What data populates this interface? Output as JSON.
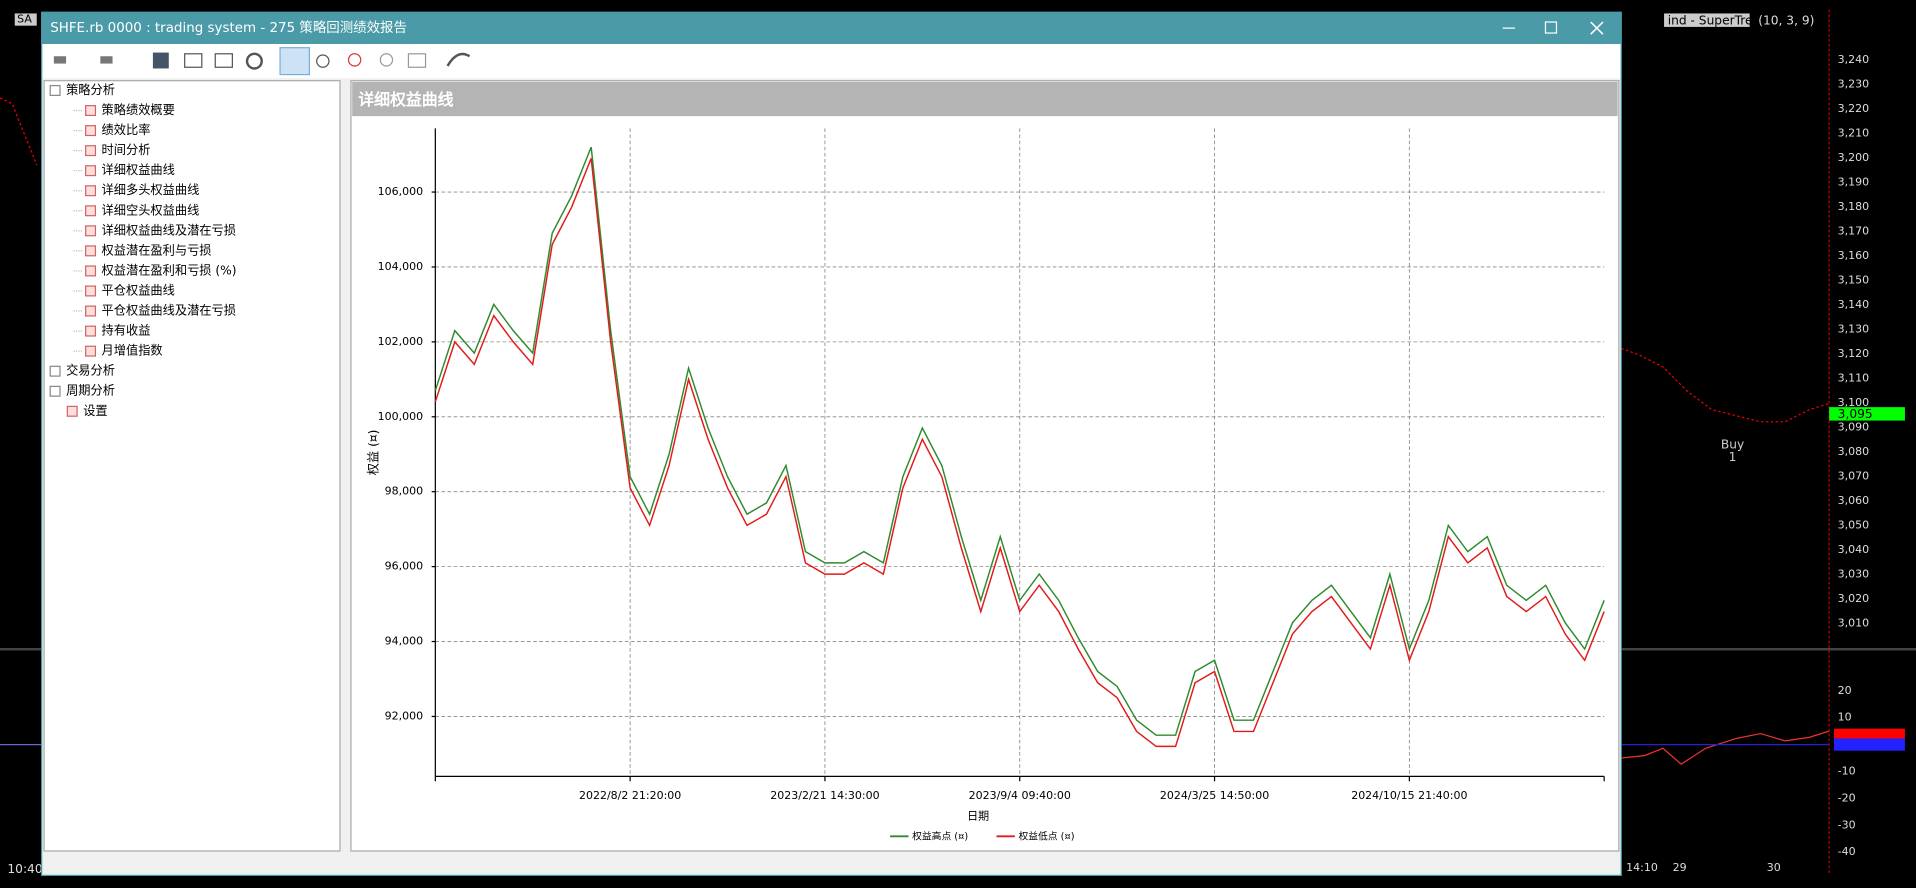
{
  "window": {
    "title": "SHFE.rb 0000 : trading system - 275 策略回测绩效报告"
  },
  "tree": [
    {
      "label": "策略分析",
      "children": [
        "策略绩效概要",
        "绩效比率",
        "时间分析",
        "详细权益曲线",
        "详细多头权益曲线",
        "详细空头权益曲线",
        "详细权益曲线及潜在亏损",
        "权益潜在盈利与亏损",
        "权益潜在盈利和亏损 (%)",
        "平仓权益曲线",
        "平仓权益曲线及潜在亏损",
        "持有收益",
        "月增值指数"
      ]
    },
    {
      "label": "交易分析",
      "children": []
    },
    {
      "label": "周期分析",
      "children": []
    },
    {
      "label": "设置",
      "children": []
    }
  ],
  "panel": {
    "title": "详细权益曲线"
  },
  "chart_data": {
    "type": "line",
    "ylabel": "权益 (¤)",
    "xlabel": "日期",
    "categories": [
      null,
      null,
      null,
      null,
      null,
      null,
      null,
      null,
      null,
      null,
      "2022/8/2 21:20:00",
      null,
      null,
      null,
      null,
      null,
      null,
      null,
      null,
      null,
      "2023/2/21 14:30:00",
      null,
      null,
      null,
      null,
      null,
      null,
      null,
      null,
      null,
      "2023/9/4 09:40:00",
      null,
      null,
      null,
      null,
      null,
      null,
      null,
      null,
      null,
      "2024/3/25 14:50:00",
      null,
      null,
      null,
      null,
      null,
      null,
      null,
      null,
      null,
      "2024/10/15 21:40:00",
      null,
      null,
      null,
      null,
      null,
      null,
      null,
      null,
      null,
      null
    ],
    "series": [
      {
        "name": "权益高点 (¤)",
        "color": "#2e8b2e",
        "values": [
          100700,
          102300,
          101700,
          103000,
          102300,
          101700,
          104900,
          105900,
          107200,
          102300,
          98400,
          97400,
          99000,
          101300,
          99700,
          98400,
          97400,
          97700,
          98700,
          96400,
          96100,
          96100,
          96400,
          96100,
          98400,
          99700,
          98700,
          96800,
          95100,
          96800,
          95100,
          95800,
          95100,
          94100,
          93200,
          92800,
          91900,
          91500,
          91500,
          93200,
          93500,
          91900,
          91900,
          93200,
          94500,
          95100,
          95500,
          94800,
          94100,
          95800,
          93800,
          95100,
          97100,
          96400,
          96800,
          95500,
          95100,
          95500,
          94500,
          93800,
          95100
        ]
      },
      {
        "name": "权益低点 (¤)",
        "color": "#e31a1a",
        "values": [
          100400,
          102000,
          101400,
          102700,
          102000,
          101400,
          104600,
          105600,
          106900,
          102000,
          98100,
          97100,
          98700,
          101000,
          99400,
          98100,
          97100,
          97400,
          98400,
          96100,
          95800,
          95800,
          96100,
          95800,
          98100,
          99400,
          98400,
          96500,
          94800,
          96500,
          94800,
          95500,
          94800,
          93800,
          92900,
          92500,
          91600,
          91200,
          91200,
          92900,
          93200,
          91600,
          91600,
          92900,
          94200,
          94800,
          95200,
          94500,
          93800,
          95500,
          93500,
          94800,
          96800,
          96100,
          96500,
          95200,
          94800,
          95200,
          94200,
          93500,
          94800
        ]
      }
    ],
    "ylim": [
      90400,
      107700
    ],
    "yticks": [
      {
        "value": 92000,
        "label": "92,000"
      },
      {
        "value": 94000,
        "label": "94,000"
      },
      {
        "value": 96000,
        "label": "96,000"
      },
      {
        "value": 98000,
        "label": "98,000"
      },
      {
        "value": 100000,
        "label": "100,000"
      },
      {
        "value": 102000,
        "label": "102,000"
      },
      {
        "value": 104000,
        "label": "104,000"
      },
      {
        "value": 106000,
        "label": "106,000"
      }
    ],
    "grid": true
  },
  "background": {
    "left_tag": "SA",
    "left_time": "10:40",
    "indicator": "ind - SuperTrend",
    "indicator_params": "(10, 3, 9)",
    "price_labels": [
      "3,240",
      "3,230",
      "3,220",
      "3,210",
      "3,200",
      "3,190",
      "3,180",
      "3,170",
      "3,160",
      "3,150",
      "3,140",
      "3,130",
      "3,120",
      "3,110",
      "3,100",
      "3,090",
      "3,080",
      "3,070",
      "3,060",
      "3,050",
      "3,040",
      "3,030",
      "3,020",
      "3,010"
    ],
    "last_price": "3,095",
    "buy": "Buy",
    "buy_count": "1",
    "osc_labels": [
      "20",
      "10",
      "-10",
      "-20",
      "-30",
      "-40"
    ],
    "time_labels": [
      "14:10",
      "29",
      "30"
    ]
  }
}
